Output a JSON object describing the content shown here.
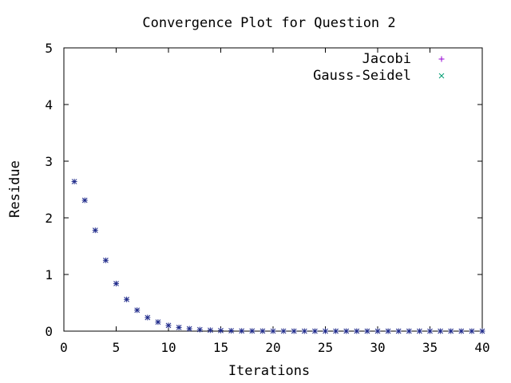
{
  "chart_data": {
    "type": "scatter",
    "title": "Convergence Plot for Question 2",
    "xlabel": "Iterations",
    "ylabel": "Residue",
    "xlim": [
      0,
      40
    ],
    "ylim": [
      0,
      5
    ],
    "xticks": [
      "0",
      "5",
      "10",
      "15",
      "20",
      "25",
      "30",
      "35",
      "40"
    ],
    "yticks": [
      "0",
      "1",
      "2",
      "3",
      "4",
      "5"
    ],
    "grid": false,
    "legend_position": "top-right",
    "x": [
      1,
      2,
      3,
      4,
      5,
      6,
      7,
      8,
      9,
      10,
      11,
      12,
      13,
      14,
      15,
      16,
      17,
      18,
      19,
      20,
      21,
      22,
      23,
      24,
      25,
      26,
      27,
      28,
      29,
      30,
      31,
      32,
      33,
      34,
      35,
      36,
      37,
      38,
      39,
      40
    ],
    "series": [
      {
        "name": "Jacobi",
        "marker": "plus",
        "color": "#9400d3",
        "values": [
          2.64,
          2.31,
          1.78,
          1.25,
          0.84,
          0.56,
          0.37,
          0.24,
          0.16,
          0.1,
          0.065,
          0.042,
          0.027,
          0.017,
          0.011,
          0.007,
          0.004,
          0.003,
          0.002,
          0.001,
          0.001,
          0,
          0,
          0,
          0,
          0,
          0,
          0,
          0,
          0,
          0,
          0,
          0,
          0,
          0,
          0,
          0,
          0,
          0,
          0
        ]
      },
      {
        "name": "Gauss-Seidel",
        "marker": "cross",
        "color": "#009e73",
        "values": [
          2.64,
          2.31,
          1.78,
          1.25,
          0.84,
          0.56,
          0.37,
          0.24,
          0.16,
          0.1,
          0.065,
          0.042,
          0.027,
          0.017,
          0.011,
          0.007,
          0.004,
          0.003,
          0.002,
          0.001,
          0.001,
          0,
          0,
          0,
          0,
          0,
          0,
          0,
          0,
          0,
          0,
          0,
          0,
          0,
          0,
          0,
          0,
          0,
          0,
          0
        ]
      }
    ],
    "point_color_overlap": "#1f2a8a"
  }
}
